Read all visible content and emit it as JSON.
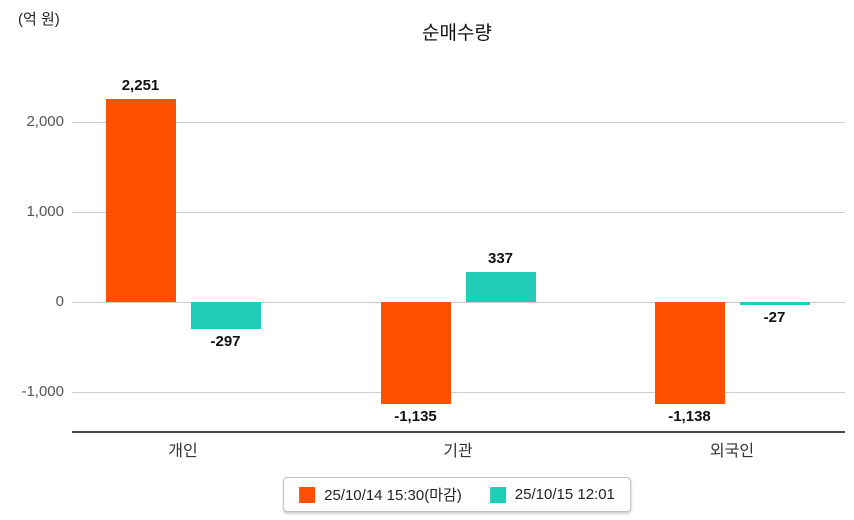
{
  "title": "순매수량",
  "unit_label": "(억 원)",
  "chart_data": {
    "type": "bar",
    "title": "순매수량",
    "ylabel": "(억 원)",
    "categories": [
      "개인",
      "기관",
      "외국인"
    ],
    "series": [
      {
        "name": "25/10/14 15:30(마감)",
        "color": "#FF5000",
        "values": [
          2251,
          -1135,
          -1138
        ],
        "labels": [
          "2,251",
          "-1,135",
          "-1,138"
        ]
      },
      {
        "name": "25/10/15 12:01",
        "color": "#1FCDB8",
        "values": [
          -297,
          337,
          -27
        ],
        "labels": [
          "-297",
          "337",
          "-27"
        ]
      }
    ],
    "yticks": [
      {
        "value": 2000,
        "label": "2,000"
      },
      {
        "value": 1000,
        "label": "1,000"
      },
      {
        "value": 0,
        "label": "0"
      },
      {
        "value": -1000,
        "label": "-1,000"
      }
    ],
    "ylim": [
      -1444,
      2689
    ],
    "grid": true,
    "legend_position": "bottom",
    "colors": {
      "grid": "#CCCCCC",
      "axis": "#4A4A4A",
      "tick_label": "#555555",
      "value_label": "#111111"
    }
  }
}
